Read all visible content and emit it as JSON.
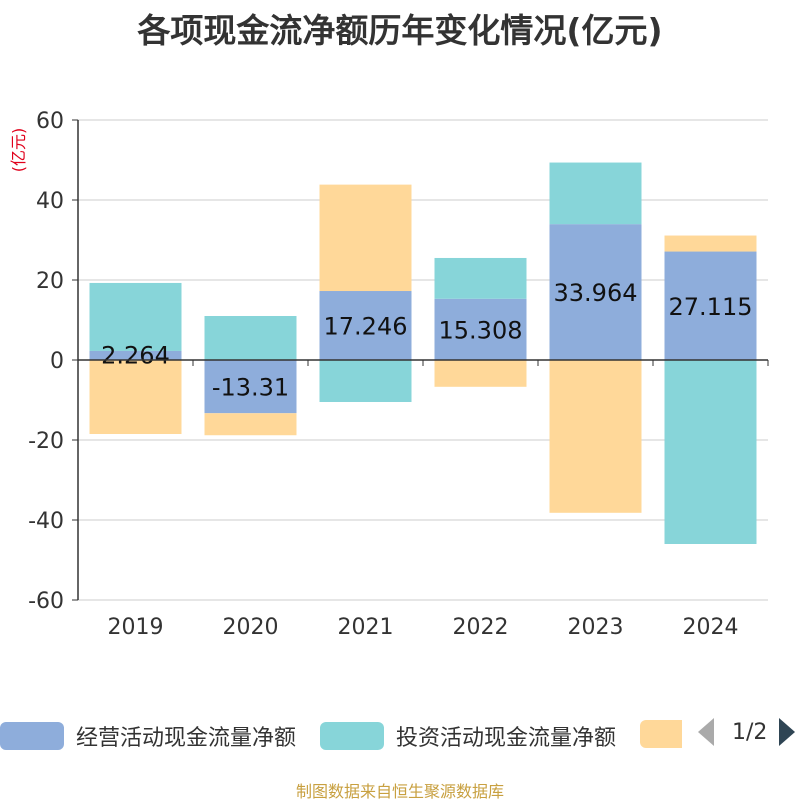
{
  "title": "各项现金流净额历年变化情况(亿元)",
  "unit_label": "(亿元)",
  "source": "制图数据来自恒生聚源数据库",
  "legend": {
    "items": [
      {
        "label": "经营活动现金流量净额",
        "color": "#8eaddb"
      },
      {
        "label": "投资活动现金流量净额",
        "color": "#87d5d9"
      },
      {
        "label": "",
        "color": "#ffd899"
      }
    ],
    "page_text": "1/2"
  },
  "chart_data": {
    "type": "bar",
    "stacked": true,
    "categories": [
      "2019",
      "2020",
      "2021",
      "2022",
      "2023",
      "2024"
    ],
    "ylim": [
      -60,
      60
    ],
    "yticks": [
      60,
      40,
      20,
      0,
      -20,
      -40,
      -60
    ],
    "grid": true,
    "series": [
      {
        "name": "经营活动现金流量净额",
        "color": "#8eaddb",
        "values": [
          2.264,
          -13.31,
          17.246,
          15.308,
          33.964,
          27.115
        ],
        "labels": [
          "2.264",
          "-13.31",
          "17.246",
          "15.308",
          "33.964",
          "27.115"
        ]
      },
      {
        "name": "投资活动现金流量净额",
        "color": "#87d5d9",
        "values": [
          17.0,
          11.0,
          -10.5,
          10.2,
          15.4,
          -46.0
        ]
      },
      {
        "name": "",
        "color": "#ffd899",
        "values": [
          -18.5,
          -5.5,
          26.6,
          -6.7,
          -38.2,
          4.0
        ]
      }
    ]
  }
}
